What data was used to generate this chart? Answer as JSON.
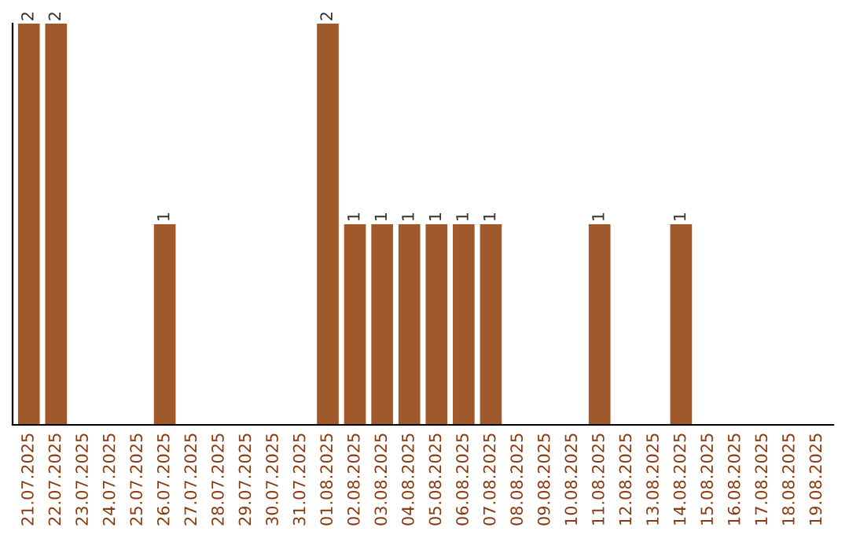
{
  "chart_data": {
    "type": "bar",
    "categories": [
      "21.07.2025",
      "22.07.2025",
      "23.07.2025",
      "24.07.2025",
      "25.07.2025",
      "26.07.2025",
      "27.07.2025",
      "28.07.2025",
      "29.07.2025",
      "30.07.2025",
      "31.07.2025",
      "01.08.2025",
      "02.08.2025",
      "03.08.2025",
      "04.08.2025",
      "05.08.2025",
      "06.08.2025",
      "07.08.2025",
      "08.08.2025",
      "09.08.2025",
      "10.08.2025",
      "11.08.2025",
      "12.08.2025",
      "13.08.2025",
      "14.08.2025",
      "15.08.2025",
      "16.08.2025",
      "17.08.2025",
      "18.08.2025",
      "19.08.2025"
    ],
    "values": [
      2,
      2,
      0,
      0,
      0,
      1,
      0,
      0,
      0,
      0,
      0,
      2,
      1,
      1,
      1,
      1,
      1,
      1,
      0,
      0,
      0,
      1,
      0,
      0,
      1,
      0,
      0,
      0,
      0,
      0
    ],
    "value_labels": [
      "2",
      "2",
      null,
      null,
      null,
      "1",
      null,
      null,
      null,
      null,
      null,
      "2",
      "1",
      "1",
      "1",
      "1",
      "1",
      "1",
      null,
      null,
      null,
      "1",
      null,
      null,
      "1",
      null,
      null,
      null,
      null,
      null
    ],
    "color": "#a0592a",
    "tick_labels": "x",
    "grid": false,
    "legend": false
  }
}
